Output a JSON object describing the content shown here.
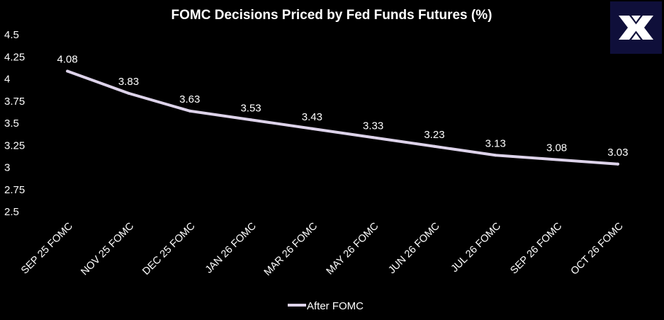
{
  "brand": {
    "logo_icon": "double-x-logo-icon",
    "logo_bg_color": "#0f0f3a",
    "logo_fg_color": "#ffffff"
  },
  "chart_data": {
    "type": "line",
    "title": "FOMC Decisions Priced by Fed Funds Futures (%)",
    "xlabel": "",
    "ylabel": "",
    "categories": [
      "SEP 25 FOMC",
      "NOV 25 FOMC",
      "DEC 25 FOMC",
      "JAN 26 FOMC",
      "MAR 26 FOMC",
      "MAY 26 FOMC",
      "JUN 26 FOMC",
      "JUL 26 FOMC",
      "SEP 26 FOMC",
      "OCT 26 FOMC"
    ],
    "series": [
      {
        "name": "After FOMC",
        "values": [
          4.08,
          3.83,
          3.63,
          3.53,
          3.43,
          3.33,
          3.23,
          3.13,
          3.08,
          3.03
        ],
        "data_labels": [
          "4.08",
          "3.83",
          "3.63",
          "3.53",
          "3.43",
          "3.33",
          "3.23",
          "3.13",
          "3.08",
          "3.03"
        ],
        "color": "#ddd3ea"
      }
    ],
    "ylim": [
      2.5,
      4.5
    ],
    "y_ticks": [
      2.5,
      2.75,
      3,
      3.25,
      3.5,
      3.75,
      4,
      4.25,
      4.5
    ],
    "y_tick_labels": [
      "2.5",
      "2.75",
      "3",
      "3.25",
      "3.5",
      "3.75",
      "4",
      "4.25",
      "4.5"
    ],
    "grid": false,
    "legend": "bottom",
    "background_color": "#000000",
    "text_color": "#ffffff"
  }
}
